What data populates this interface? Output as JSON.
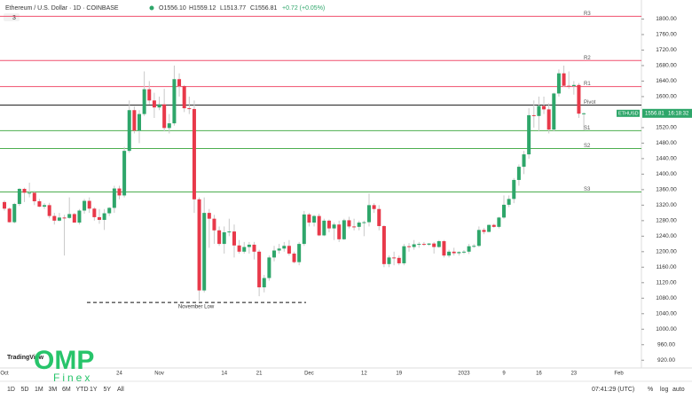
{
  "chart_data": {
    "type": "candlestick",
    "header": {
      "symbol": "Ethereum / U.S. Dollar · 1D · COINBASE",
      "open": "O1556.10",
      "high": "H1559.12",
      "low": "L1513.77",
      "close": "C1556.81",
      "change": "+0.72 (+0.05%)",
      "indicators": "3"
    },
    "up_color": "#2ea66a",
    "down_color": "#e8394a",
    "categories": [
      "Oct",
      null,
      null,
      null,
      null,
      null,
      null,
      null,
      null,
      null,
      null,
      null,
      null,
      null,
      null,
      null,
      null,
      null,
      null,
      null,
      null,
      null,
      null,
      "24",
      null,
      null,
      null,
      null,
      null,
      null,
      null,
      "Nov",
      null,
      null,
      null,
      null,
      null,
      null,
      null,
      null,
      null,
      null,
      null,
      null,
      "14",
      null,
      null,
      null,
      null,
      null,
      null,
      "21",
      null,
      null,
      null,
      null,
      null,
      null,
      null,
      null,
      null,
      "Dec",
      null,
      null,
      null,
      null,
      null,
      null,
      null,
      null,
      null,
      null,
      "12",
      null,
      null,
      null,
      null,
      null,
      null,
      "19",
      null,
      null,
      null,
      null,
      null,
      null,
      null,
      null,
      null,
      null,
      null,
      null,
      "2023",
      null,
      null,
      null,
      null,
      null,
      null,
      null,
      "9",
      null,
      null,
      null,
      null,
      null,
      null,
      "16",
      null,
      null,
      null,
      null,
      null,
      null,
      "23",
      null,
      null,
      null,
      null,
      null,
      null,
      null,
      null,
      "Feb"
    ],
    "ohlc": [
      [
        1328,
        1332,
        1306,
        1311
      ],
      [
        1311,
        1314,
        1275,
        1276
      ],
      [
        1276,
        1326,
        1273,
        1323
      ],
      [
        1323,
        1364,
        1318,
        1362
      ],
      [
        1362,
        1365,
        1328,
        1352
      ],
      [
        1352,
        1378,
        1340,
        1352
      ],
      [
        1352,
        1357,
        1320,
        1330
      ],
      [
        1330,
        1336,
        1315,
        1316
      ],
      [
        1316,
        1325,
        1310,
        1320
      ],
      [
        1320,
        1326,
        1286,
        1292
      ],
      [
        1292,
        1300,
        1270,
        1280
      ],
      [
        1280,
        1300,
        1278,
        1288
      ],
      [
        1288,
        1295,
        1190,
        1287
      ],
      [
        1287,
        1340,
        1285,
        1297
      ],
      [
        1297,
        1300,
        1275,
        1275
      ],
      [
        1275,
        1310,
        1270,
        1306
      ],
      [
        1306,
        1336,
        1298,
        1331
      ],
      [
        1331,
        1340,
        1300,
        1311
      ],
      [
        1311,
        1315,
        1280,
        1289
      ],
      [
        1289,
        1310,
        1272,
        1282
      ],
      [
        1282,
        1310,
        1256,
        1299
      ],
      [
        1299,
        1315,
        1292,
        1313
      ],
      [
        1313,
        1370,
        1300,
        1363
      ],
      [
        1363,
        1370,
        1335,
        1345
      ],
      [
        1345,
        1470,
        1340,
        1460
      ],
      [
        1460,
        1590,
        1455,
        1565
      ],
      [
        1565,
        1575,
        1505,
        1512
      ],
      [
        1512,
        1565,
        1480,
        1555
      ],
      [
        1555,
        1665,
        1550,
        1619
      ],
      [
        1619,
        1640,
        1580,
        1590
      ],
      [
        1590,
        1610,
        1545,
        1572
      ],
      [
        1572,
        1600,
        1565,
        1580
      ],
      [
        1580,
        1620,
        1510,
        1519
      ],
      [
        1519,
        1555,
        1505,
        1531
      ],
      [
        1531,
        1680,
        1525,
        1645
      ],
      [
        1645,
        1660,
        1600,
        1627
      ],
      [
        1627,
        1630,
        1560,
        1570
      ],
      [
        1570,
        1600,
        1555,
        1568
      ],
      [
        1568,
        1590,
        1300,
        1335
      ],
      [
        1335,
        1340,
        1073,
        1100
      ],
      [
        1100,
        1340,
        1095,
        1300
      ],
      [
        1300,
        1310,
        1210,
        1285
      ],
      [
        1285,
        1295,
        1220,
        1255
      ],
      [
        1255,
        1265,
        1215,
        1220
      ],
      [
        1220,
        1265,
        1195,
        1250
      ],
      [
        1250,
        1285,
        1240,
        1252
      ],
      [
        1252,
        1270,
        1185,
        1216
      ],
      [
        1216,
        1230,
        1195,
        1200
      ],
      [
        1200,
        1225,
        1195,
        1212
      ],
      [
        1212,
        1225,
        1195,
        1218
      ],
      [
        1218,
        1225,
        1180,
        1200
      ],
      [
        1200,
        1205,
        1085,
        1108
      ],
      [
        1108,
        1140,
        1095,
        1132
      ],
      [
        1132,
        1190,
        1125,
        1185
      ],
      [
        1185,
        1215,
        1175,
        1203
      ],
      [
        1203,
        1220,
        1195,
        1208
      ],
      [
        1208,
        1225,
        1200,
        1215
      ],
      [
        1215,
        1230,
        1190,
        1195
      ],
      [
        1195,
        1200,
        1170,
        1173
      ],
      [
        1173,
        1225,
        1165,
        1220
      ],
      [
        1220,
        1305,
        1215,
        1296
      ],
      [
        1296,
        1300,
        1265,
        1275
      ],
      [
        1275,
        1295,
        1265,
        1292
      ],
      [
        1292,
        1298,
        1240,
        1242
      ],
      [
        1242,
        1285,
        1240,
        1280
      ],
      [
        1280,
        1283,
        1250,
        1260
      ],
      [
        1260,
        1275,
        1230,
        1270
      ],
      [
        1270,
        1280,
        1225,
        1232
      ],
      [
        1232,
        1285,
        1230,
        1281
      ],
      [
        1281,
        1290,
        1260,
        1265
      ],
      [
        1265,
        1285,
        1255,
        1264
      ],
      [
        1264,
        1280,
        1255,
        1275
      ],
      [
        1275,
        1280,
        1240,
        1276
      ],
      [
        1276,
        1350,
        1265,
        1320
      ],
      [
        1320,
        1325,
        1300,
        1310
      ],
      [
        1310,
        1320,
        1255,
        1266
      ],
      [
        1266,
        1268,
        1160,
        1168
      ],
      [
        1168,
        1190,
        1160,
        1185
      ],
      [
        1185,
        1200,
        1165,
        1184
      ],
      [
        1184,
        1190,
        1165,
        1170
      ],
      [
        1170,
        1220,
        1165,
        1214
      ],
      [
        1214,
        1222,
        1200,
        1212
      ],
      [
        1212,
        1230,
        1205,
        1219
      ],
      [
        1219,
        1225,
        1210,
        1220
      ],
      [
        1220,
        1225,
        1215,
        1218
      ],
      [
        1218,
        1222,
        1215,
        1221
      ],
      [
        1221,
        1225,
        1195,
        1212
      ],
      [
        1212,
        1230,
        1210,
        1227
      ],
      [
        1227,
        1230,
        1185,
        1190
      ],
      [
        1190,
        1205,
        1185,
        1200
      ],
      [
        1200,
        1210,
        1190,
        1196
      ],
      [
        1196,
        1201,
        1190,
        1199
      ],
      [
        1199,
        1204,
        1194,
        1200
      ],
      [
        1200,
        1220,
        1194,
        1214
      ],
      [
        1214,
        1220,
        1210,
        1215
      ],
      [
        1215,
        1265,
        1212,
        1256
      ],
      [
        1256,
        1261,
        1245,
        1251
      ],
      [
        1251,
        1270,
        1250,
        1269
      ],
      [
        1269,
        1272,
        1262,
        1264
      ],
      [
        1264,
        1290,
        1260,
        1288
      ],
      [
        1288,
        1345,
        1285,
        1321
      ],
      [
        1321,
        1345,
        1315,
        1336
      ],
      [
        1336,
        1390,
        1325,
        1385
      ],
      [
        1385,
        1425,
        1370,
        1419
      ],
      [
        1419,
        1460,
        1400,
        1451
      ],
      [
        1451,
        1570,
        1440,
        1552
      ],
      [
        1552,
        1590,
        1520,
        1550
      ],
      [
        1550,
        1600,
        1510,
        1576
      ],
      [
        1576,
        1600,
        1555,
        1567
      ],
      [
        1567,
        1583,
        1505,
        1515
      ],
      [
        1515,
        1610,
        1510,
        1608
      ],
      [
        1608,
        1670,
        1600,
        1660
      ],
      [
        1660,
        1680,
        1625,
        1628
      ],
      [
        1628,
        1665,
        1620,
        1627
      ],
      [
        1627,
        1640,
        1605,
        1630
      ],
      [
        1630,
        1635,
        1545,
        1556
      ],
      [
        1556.1,
        1559.12,
        1513.77,
        1556.81
      ],
      null,
      null,
      null,
      null,
      null,
      null,
      null
    ],
    "ylim": [
      900,
      1840
    ],
    "yticks": [
      {
        "value": 920,
        "label": "920.00"
      },
      {
        "value": 960,
        "label": "960.00"
      },
      {
        "value": 1000,
        "label": "1000.00"
      },
      {
        "value": 1040,
        "label": "1040.00"
      },
      {
        "value": 1080,
        "label": "1080.00"
      },
      {
        "value": 1120,
        "label": "1120.00"
      },
      {
        "value": 1160,
        "label": "1160.00"
      },
      {
        "value": 1200,
        "label": "1200.00"
      },
      {
        "value": 1240,
        "label": "1240.00"
      },
      {
        "value": 1280,
        "label": "1280.00"
      },
      {
        "value": 1320,
        "label": "1320.00"
      },
      {
        "value": 1360,
        "label": "1360.00"
      },
      {
        "value": 1400,
        "label": "1400.00"
      },
      {
        "value": 1440,
        "label": "1440.00"
      },
      {
        "value": 1480,
        "label": "1480.00"
      },
      {
        "value": 1520,
        "label": "1520.00"
      },
      {
        "value": 1600,
        "label": "1600.00"
      },
      {
        "value": 1640,
        "label": "1640.00"
      },
      {
        "value": 1680,
        "label": "1680.00"
      },
      {
        "value": 1720,
        "label": "1720.00"
      },
      {
        "value": 1760,
        "label": "1760.00"
      },
      {
        "value": 1800,
        "label": "1800.00"
      }
    ],
    "levels": [
      {
        "name": "R3",
        "value": 1807,
        "color": "#f0506e"
      },
      {
        "name": "R2",
        "value": 1693,
        "color": "#f0506e"
      },
      {
        "name": "R1",
        "value": 1626,
        "color": "#f0506e"
      },
      {
        "name": "Pivot",
        "value": 1578,
        "color": "#222222"
      },
      {
        "name": "S1",
        "value": 1512,
        "color": "#4cae4f"
      },
      {
        "name": "S2",
        "value": 1466,
        "color": "#4cae4f"
      },
      {
        "name": "S3",
        "value": 1354,
        "color": "#4cae4f"
      }
    ],
    "annotation": {
      "text": "November Low",
      "value": 1069
    },
    "price_tag": {
      "symbol": "ETHUSD",
      "price": "1556.81",
      "countdown": "16:18:32",
      "value": 1556.81
    },
    "toolbar": {
      "ranges": [
        "1D",
        "5D",
        "1M",
        "3M",
        "6M",
        "YTD",
        "1Y",
        "5Y",
        "All"
      ],
      "clock": "07:41:29 (UTC)",
      "options": [
        "%",
        "log",
        "auto"
      ]
    },
    "branding": {
      "logo": "OMP",
      "sub": "Finex",
      "platform": "TradingView"
    }
  }
}
